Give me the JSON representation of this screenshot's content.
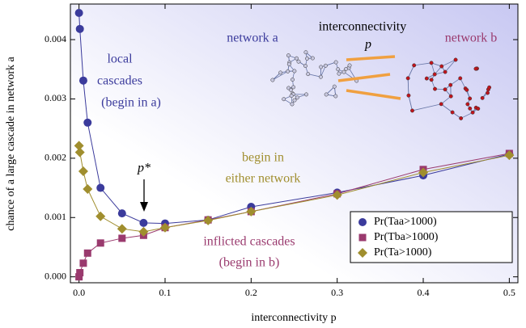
{
  "chart_data": {
    "type": "line",
    "x_label": "interconnectivity p",
    "y_label": "chance of a large cascade in network a",
    "x": [
      0,
      0.001,
      0.005,
      0.01,
      0.025,
      0.05,
      0.075,
      0.1,
      0.15,
      0.2,
      0.3,
      0.4,
      0.5
    ],
    "series": [
      {
        "name": "Pr(Taa>1000)",
        "color": "#3b3b9c",
        "marker": "circle",
        "values": [
          0.00445,
          0.00418,
          0.00331,
          0.0026,
          0.0015,
          0.00107,
          0.00091,
          0.0009,
          0.00096,
          0.00118,
          0.00142,
          0.00171,
          0.00207
        ]
      },
      {
        "name": "Pr(Tba>1000)",
        "color": "#9a3a6e",
        "marker": "square",
        "values": [
          0.0,
          7e-05,
          0.00023,
          0.0004,
          0.00057,
          0.00065,
          0.0007,
          0.00083,
          0.00096,
          0.0011,
          0.0014,
          0.00181,
          0.00208
        ]
      },
      {
        "name": "Pr(Ta>1000)",
        "color": "#a08e2e",
        "marker": "diamond",
        "values": [
          0.00221,
          0.0021,
          0.00178,
          0.00148,
          0.00102,
          0.00081,
          0.00076,
          0.00083,
          0.00095,
          0.0011,
          0.00138,
          0.00176,
          0.00205
        ]
      }
    ],
    "xlim": [
      -0.01,
      0.51
    ],
    "ylim": [
      -0.0001,
      0.0046
    ],
    "xticks": [
      {
        "value": 0,
        "label": "0.0"
      },
      0.1,
      0.2,
      0.3,
      0.4,
      0.5
    ],
    "yticks": [
      {
        "value": 0,
        "label": "0.000"
      },
      {
        "value": 0.001,
        "label": "0.001"
      },
      {
        "value": 0.002,
        "label": "0.002"
      },
      {
        "value": 0.003,
        "label": "0.003"
      },
      {
        "value": 0.004,
        "label": "0.004"
      }
    ],
    "legend": "lower right",
    "annotations": {
      "local": [
        "local",
        "cascades",
        "(begin in a)"
      ],
      "either": [
        "begin in",
        "either network"
      ],
      "inflicted": [
        "inflicted cascades",
        "(begin in b)"
      ],
      "pstar": "p*",
      "inset": {
        "left": "network a",
        "middle": [
          "interconnectivity",
          "p"
        ],
        "right": "network b"
      }
    }
  }
}
